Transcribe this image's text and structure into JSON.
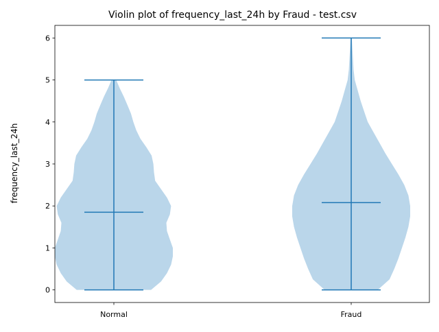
{
  "chart_data": {
    "type": "violin",
    "title": "Violin plot of frequency_last_24h by Fraud - test.csv",
    "xlabel": "",
    "ylabel": "frequency_last_24h",
    "categories": [
      "Normal",
      "Fraud"
    ],
    "ylim": [
      -0.3,
      6.3
    ],
    "yticks": [
      "0",
      "1",
      "2",
      "3",
      "4",
      "5",
      "6"
    ],
    "grid": false,
    "colors": {
      "body": "#bad6ea",
      "lines": "#1f77b4",
      "axis": "#000000"
    },
    "series": [
      {
        "category": "Normal",
        "min": 0,
        "max": 5,
        "mean": 1.85,
        "density_profile": [
          [
            0.0,
            0.63
          ],
          [
            0.2,
            0.8
          ],
          [
            0.4,
            0.9
          ],
          [
            0.6,
            0.97
          ],
          [
            0.8,
            1.0
          ],
          [
            1.0,
            1.0
          ],
          [
            1.2,
            0.95
          ],
          [
            1.4,
            0.9
          ],
          [
            1.6,
            0.89
          ],
          [
            1.8,
            0.95
          ],
          [
            2.0,
            0.97
          ],
          [
            2.2,
            0.9
          ],
          [
            2.4,
            0.8
          ],
          [
            2.6,
            0.7
          ],
          [
            2.8,
            0.68
          ],
          [
            3.0,
            0.67
          ],
          [
            3.2,
            0.64
          ],
          [
            3.4,
            0.55
          ],
          [
            3.6,
            0.45
          ],
          [
            3.8,
            0.38
          ],
          [
            4.0,
            0.33
          ],
          [
            4.2,
            0.29
          ],
          [
            4.4,
            0.23
          ],
          [
            4.6,
            0.17
          ],
          [
            4.8,
            0.1
          ],
          [
            5.0,
            0.04
          ]
        ]
      },
      {
        "category": "Fraud",
        "min": 0,
        "max": 6,
        "mean": 2.08,
        "density_profile": [
          [
            0.0,
            0.45
          ],
          [
            0.25,
            0.65
          ],
          [
            0.5,
            0.73
          ],
          [
            0.75,
            0.8
          ],
          [
            1.0,
            0.86
          ],
          [
            1.25,
            0.92
          ],
          [
            1.5,
            0.97
          ],
          [
            1.75,
            1.0
          ],
          [
            2.0,
            1.0
          ],
          [
            2.25,
            0.97
          ],
          [
            2.5,
            0.9
          ],
          [
            2.75,
            0.8
          ],
          [
            3.0,
            0.69
          ],
          [
            3.25,
            0.58
          ],
          [
            3.5,
            0.48
          ],
          [
            3.75,
            0.38
          ],
          [
            4.0,
            0.28
          ],
          [
            4.25,
            0.22
          ],
          [
            4.5,
            0.16
          ],
          [
            4.75,
            0.11
          ],
          [
            5.0,
            0.06
          ],
          [
            5.25,
            0.04
          ],
          [
            5.5,
            0.03
          ],
          [
            5.75,
            0.02
          ],
          [
            6.0,
            0.01
          ]
        ]
      }
    ]
  }
}
